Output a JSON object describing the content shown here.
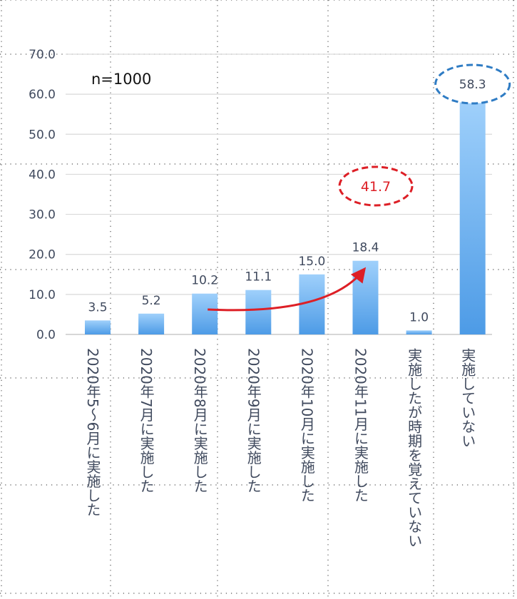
{
  "chart_data": {
    "type": "bar",
    "note": "n=1000",
    "categories": [
      "2020年5～6月に実施した",
      "2020年7月に実施した",
      "2020年8月に実施した",
      "2020年9月に実施した",
      "2020年10月に実施した",
      "2020年11月に実施した",
      "実施したが時期を覚えていない",
      "実施していない"
    ],
    "values": [
      3.5,
      5.2,
      10.2,
      11.1,
      15.0,
      18.4,
      1.0,
      58.3
    ],
    "value_labels": [
      "3.5",
      "5.2",
      "10.2",
      "11.1",
      "15.0",
      "18.4",
      "1.0",
      "58.3"
    ],
    "ylim": [
      0,
      70
    ],
    "yticks": [
      "0.0",
      "10.0",
      "20.0",
      "30.0",
      "40.0",
      "50.0",
      "60.0",
      "70.0"
    ],
    "grid": true,
    "legend": "none",
    "annotations": {
      "sum_label": "41.7",
      "sum_color": "#dd1f26",
      "highlight_color": "#2f7cc4",
      "arrow": {
        "from_category": "2020年8月に実施した",
        "to_category": "2020年11月に実施した"
      }
    },
    "colors": {
      "bar_top": "#9fd0fb",
      "bar_bottom": "#4d9be6",
      "grid": "#d9d9d9",
      "text": "#404a5e"
    }
  }
}
